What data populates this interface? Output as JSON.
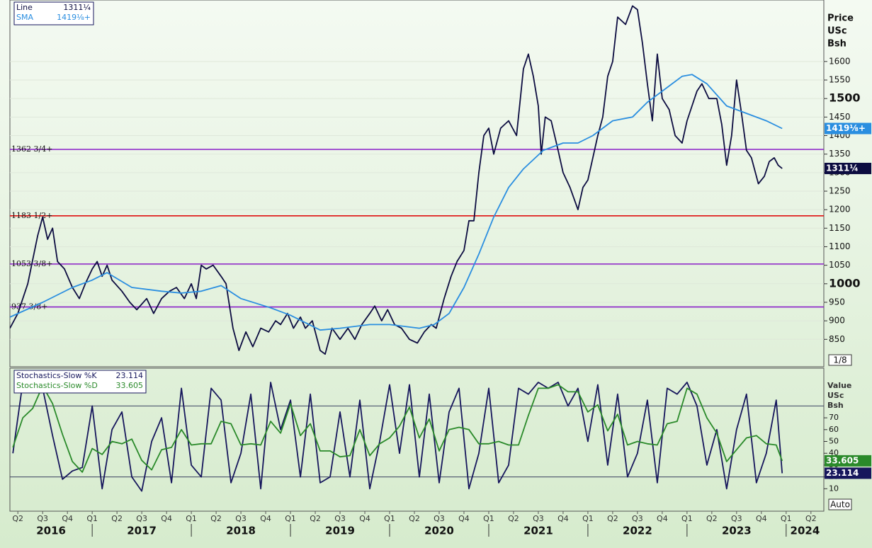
{
  "chart_data": [
    {
      "type": "line",
      "ylabel": [
        "Price",
        "USc",
        "Bsh"
      ],
      "scale_label": "1/8",
      "xlim": [
        2016.17,
        2024.38
      ],
      "ylim": [
        776,
        1766
      ],
      "yticks": [
        850,
        900,
        950,
        1000,
        1050,
        1100,
        1150,
        1200,
        1250,
        1300,
        1350,
        1400,
        1450,
        1500,
        1550,
        1600
      ],
      "major_yticks": [
        1000,
        1500
      ],
      "grid": true,
      "levels": [
        {
          "value": 1362.75,
          "label": "1362 3/4+",
          "color": "#8a1fc8"
        },
        {
          "value": 1183.5,
          "label": "1183 1/2+",
          "color": "#e01010"
        },
        {
          "value": 1053.375,
          "label": "1053 3/8+",
          "color": "#8a1fc8"
        },
        {
          "value": 937.375,
          "label": "937 3/8+",
          "color": "#8a1fc8"
        }
      ],
      "series": [
        {
          "name": "Line",
          "color": "#0c0c40",
          "last_value_label": "1311¼",
          "x": [
            2016.17,
            2016.25,
            2016.35,
            2016.45,
            2016.5,
            2016.55,
            2016.6,
            2016.65,
            2016.72,
            2016.8,
            2016.87,
            2016.93,
            2017.0,
            2017.05,
            2017.1,
            2017.15,
            2017.2,
            2017.3,
            2017.38,
            2017.45,
            2017.55,
            2017.62,
            2017.7,
            2017.78,
            2017.85,
            2017.93,
            2018.0,
            2018.05,
            2018.1,
            2018.15,
            2018.22,
            2018.3,
            2018.35,
            2018.42,
            2018.48,
            2018.55,
            2018.62,
            2018.7,
            2018.78,
            2018.85,
            2018.9,
            2018.97,
            2019.03,
            2019.1,
            2019.15,
            2019.22,
            2019.3,
            2019.35,
            2019.42,
            2019.5,
            2019.58,
            2019.65,
            2019.72,
            2019.8,
            2019.85,
            2019.92,
            2019.98,
            2020.05,
            2020.12,
            2020.2,
            2020.28,
            2020.35,
            2020.42,
            2020.47,
            2020.55,
            2020.62,
            2020.68,
            2020.75,
            2020.8,
            2020.85,
            2020.9,
            2020.95,
            2021.0,
            2021.05,
            2021.12,
            2021.2,
            2021.28,
            2021.35,
            2021.4,
            2021.45,
            2021.5,
            2021.53,
            2021.57,
            2021.63,
            2021.7,
            2021.75,
            2021.82,
            2021.9,
            2021.95,
            2022.0,
            2022.05,
            2022.1,
            2022.15,
            2022.2,
            2022.25,
            2022.3,
            2022.38,
            2022.45,
            2022.5,
            2022.55,
            2022.6,
            2022.65,
            2022.7,
            2022.75,
            2022.82,
            2022.88,
            2022.95,
            2023.0,
            2023.05,
            2023.1,
            2023.15,
            2023.22,
            2023.3,
            2023.35,
            2023.4,
            2023.45,
            2023.5,
            2023.55,
            2023.6,
            2023.65,
            2023.72,
            2023.78,
            2023.83,
            2023.88,
            2023.92,
            2023.96
          ],
          "values": [
            880,
            920,
            1000,
            1130,
            1180,
            1120,
            1150,
            1060,
            1040,
            990,
            960,
            1000,
            1040,
            1060,
            1020,
            1050,
            1010,
            980,
            950,
            930,
            960,
            920,
            960,
            980,
            990,
            960,
            1000,
            960,
            1050,
            1040,
            1050,
            1020,
            1000,
            880,
            820,
            870,
            830,
            880,
            870,
            900,
            890,
            920,
            880,
            910,
            880,
            900,
            820,
            810,
            880,
            850,
            880,
            850,
            890,
            920,
            940,
            900,
            930,
            890,
            880,
            850,
            840,
            870,
            890,
            880,
            960,
            1020,
            1060,
            1090,
            1170,
            1170,
            1300,
            1400,
            1420,
            1350,
            1420,
            1440,
            1400,
            1580,
            1620,
            1560,
            1480,
            1350,
            1450,
            1440,
            1360,
            1300,
            1260,
            1200,
            1260,
            1280,
            1340,
            1400,
            1450,
            1560,
            1600,
            1720,
            1700,
            1750,
            1740,
            1650,
            1540,
            1440,
            1620,
            1500,
            1470,
            1400,
            1380,
            1440,
            1480,
            1520,
            1540,
            1500,
            1500,
            1430,
            1320,
            1400,
            1550,
            1460,
            1360,
            1340,
            1270,
            1290,
            1330,
            1340,
            1320,
            1311.25
          ]
        },
        {
          "name": "SMA",
          "color": "#2a8ee0",
          "last_value_label": "1419⅛+",
          "x": [
            2016.17,
            2016.5,
            2016.8,
            2017.0,
            2017.15,
            2017.4,
            2017.7,
            2017.9,
            2018.1,
            2018.3,
            2018.5,
            2018.8,
            2019.0,
            2019.3,
            2019.5,
            2019.8,
            2020.0,
            2020.3,
            2020.45,
            2020.6,
            2020.75,
            2020.9,
            2021.05,
            2021.2,
            2021.35,
            2021.55,
            2021.75,
            2021.9,
            2022.05,
            2022.25,
            2022.45,
            2022.6,
            2022.8,
            2022.95,
            2023.05,
            2023.2,
            2023.4,
            2023.6,
            2023.8,
            2023.96
          ],
          "values": [
            910,
            950,
            990,
            1010,
            1030,
            990,
            980,
            975,
            980,
            995,
            960,
            935,
            915,
            875,
            880,
            890,
            890,
            880,
            890,
            920,
            990,
            1080,
            1180,
            1260,
            1310,
            1360,
            1380,
            1380,
            1400,
            1440,
            1450,
            1490,
            1530,
            1560,
            1565,
            1540,
            1480,
            1460,
            1440,
            1419.125
          ]
        }
      ]
    },
    {
      "type": "line",
      "ylabel": [
        "Value",
        "USc",
        "Bsh"
      ],
      "scale_label": "Auto",
      "xlim": [
        2016.17,
        2024.38
      ],
      "ylim": [
        -9,
        112
      ],
      "yticks": [
        10,
        20,
        30,
        40,
        50,
        60,
        70
      ],
      "grid": false,
      "levels": [
        {
          "value": 80,
          "color": "#3a4060"
        },
        {
          "value": 20,
          "color": "#3a4060"
        }
      ],
      "xticks": [
        {
          "value": 2016.25,
          "label": "Q2"
        },
        {
          "value": 2016.5,
          "label": "Q3"
        },
        {
          "value": 2016.75,
          "label": "Q4"
        },
        {
          "value": 2017,
          "label": "Q1"
        },
        {
          "value": 2017.25,
          "label": "Q2"
        },
        {
          "value": 2017.5,
          "label": "Q3"
        },
        {
          "value": 2017.75,
          "label": "Q4"
        },
        {
          "value": 2018,
          "label": "Q1"
        },
        {
          "value": 2018.25,
          "label": "Q2"
        },
        {
          "value": 2018.5,
          "label": "Q3"
        },
        {
          "value": 2018.75,
          "label": "Q4"
        },
        {
          "value": 2019,
          "label": "Q1"
        },
        {
          "value": 2019.25,
          "label": "Q2"
        },
        {
          "value": 2019.5,
          "label": "Q3"
        },
        {
          "value": 2019.75,
          "label": "Q4"
        },
        {
          "value": 2020,
          "label": "Q1"
        },
        {
          "value": 2020.25,
          "label": "Q2"
        },
        {
          "value": 2020.5,
          "label": "Q3"
        },
        {
          "value": 2020.75,
          "label": "Q4"
        },
        {
          "value": 2021,
          "label": "Q1"
        },
        {
          "value": 2021.25,
          "label": "Q2"
        },
        {
          "value": 2021.5,
          "label": "Q3"
        },
        {
          "value": 2021.75,
          "label": "Q4"
        },
        {
          "value": 2022,
          "label": "Q1"
        },
        {
          "value": 2022.25,
          "label": "Q2"
        },
        {
          "value": 2022.5,
          "label": "Q3"
        },
        {
          "value": 2022.75,
          "label": "Q4"
        },
        {
          "value": 2023,
          "label": "Q1"
        },
        {
          "value": 2023.25,
          "label": "Q2"
        },
        {
          "value": 2023.5,
          "label": "Q3"
        },
        {
          "value": 2023.75,
          "label": "Q4"
        },
        {
          "value": 2024,
          "label": "Q1"
        },
        {
          "value": 2024.25,
          "label": "Q2"
        }
      ],
      "year_ticks": [
        2016,
        2017,
        2018,
        2019,
        2020,
        2021,
        2022,
        2023,
        2024
      ],
      "x": [
        2016.2,
        2016.3,
        2016.4,
        2016.5,
        2016.6,
        2016.7,
        2016.8,
        2016.9,
        2017.0,
        2017.1,
        2017.2,
        2017.3,
        2017.4,
        2017.5,
        2017.6,
        2017.7,
        2017.8,
        2017.9,
        2018.0,
        2018.1,
        2018.2,
        2018.3,
        2018.4,
        2018.5,
        2018.6,
        2018.7,
        2018.8,
        2018.9,
        2019.0,
        2019.1,
        2019.2,
        2019.3,
        2019.4,
        2019.5,
        2019.6,
        2019.7,
        2019.8,
        2019.9,
        2020.0,
        2020.1,
        2020.2,
        2020.3,
        2020.4,
        2020.5,
        2020.6,
        2020.7,
        2020.8,
        2020.9,
        2021.0,
        2021.1,
        2021.2,
        2021.3,
        2021.4,
        2021.5,
        2021.6,
        2021.7,
        2021.8,
        2021.9,
        2022.0,
        2022.1,
        2022.2,
        2022.3,
        2022.4,
        2022.5,
        2022.6,
        2022.7,
        2022.8,
        2022.9,
        2023.0,
        2023.1,
        2023.2,
        2023.3,
        2023.4,
        2023.5,
        2023.6,
        2023.7,
        2023.8,
        2023.9,
        2023.96
      ],
      "series": [
        {
          "name": "Stochastics-Slow %K",
          "color": "#16165c",
          "values": [
            40,
            100,
            95,
            95,
            55,
            18,
            25,
            28,
            80,
            10,
            60,
            75,
            20,
            8,
            50,
            70,
            15,
            95,
            30,
            20,
            95,
            85,
            15,
            40,
            90,
            10,
            100,
            60,
            85,
            20,
            90,
            15,
            20,
            75,
            20,
            85,
            10,
            50,
            98,
            40,
            98,
            20,
            90,
            15,
            75,
            95,
            10,
            40,
            95,
            15,
            30,
            95,
            90,
            100,
            95,
            100,
            80,
            95,
            50,
            98,
            30,
            90,
            20,
            40,
            85,
            15,
            95,
            90,
            100,
            80,
            30,
            60,
            10,
            60,
            90,
            15,
            40,
            85,
            23.114
          ]
        },
        {
          "name": "Stochastics-Slow %D",
          "color": "#2a8a2a",
          "values": [
            45,
            70,
            78,
            97,
            82,
            56,
            33,
            24,
            44,
            39,
            50,
            48,
            52,
            34,
            26,
            43,
            45,
            60,
            47,
            48,
            48,
            67,
            65,
            47,
            48,
            47,
            67,
            57,
            82,
            55,
            65,
            42,
            42,
            37,
            38,
            60,
            38,
            48,
            53,
            63,
            79,
            53,
            69,
            42,
            60,
            62,
            60,
            48,
            48,
            50,
            47,
            47,
            72,
            95,
            95,
            98,
            92,
            92,
            75,
            81,
            59,
            73,
            47,
            50,
            48,
            47,
            65,
            67,
            95,
            90,
            70,
            57,
            33,
            43,
            53,
            55,
            48,
            47,
            33.605
          ]
        }
      ]
    }
  ]
}
